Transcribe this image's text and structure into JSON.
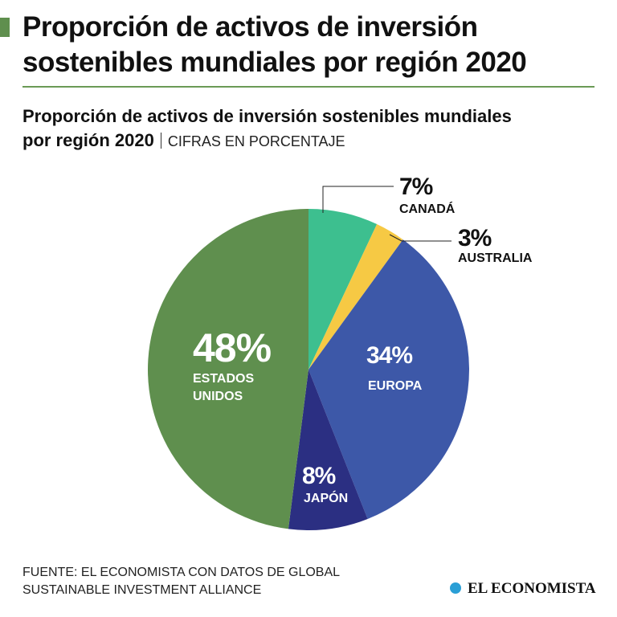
{
  "header": {
    "title": "Proporción de activos de inversión sostenibles mundiales por región 2020"
  },
  "chart_data": {
    "type": "pie",
    "title": "Proporción de activos de inversión sostenibles mundiales por región 2020",
    "subtitle": "CIFRAS EN PORCENTAJE",
    "categories": [
      "CANADÁ",
      "AUSTRALIA",
      "EUROPA",
      "JAPÓN",
      "ESTADOS UNIDOS"
    ],
    "values": [
      7,
      3,
      34,
      8,
      48
    ],
    "value_labels": [
      "7%",
      "3%",
      "34%",
      "8%",
      "48%"
    ],
    "colors": [
      "#3dbf8f",
      "#f6c944",
      "#3d58a8",
      "#2b2f82",
      "#5f8f4e"
    ]
  },
  "footer": {
    "source": "FUENTE: EL ECONOMISTA CON DATOS DE GLOBAL SUSTAINABLE INVESTMENT ALLIANCE",
    "logo": "EL ECONOMISTA"
  }
}
